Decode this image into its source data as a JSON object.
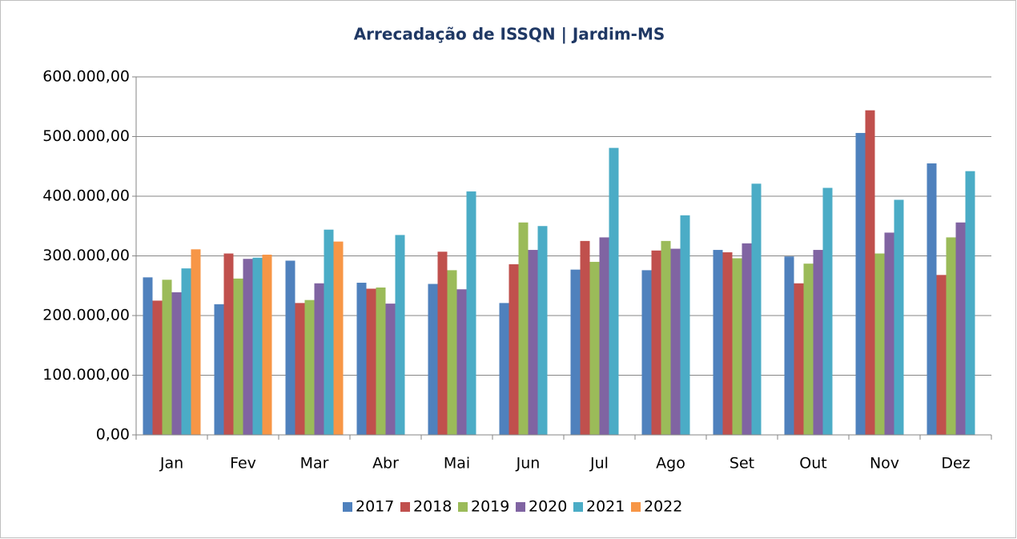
{
  "chart_data": {
    "type": "bar",
    "title": "Arrecadação de ISSQN | Jardim-MS",
    "categories": [
      "Jan",
      "Fev",
      "Mar",
      "Abr",
      "Mai",
      "Jun",
      "Jul",
      "Ago",
      "Set",
      "Out",
      "Nov",
      "Dez"
    ],
    "series": [
      {
        "name": "2017",
        "color": "#4f81bd",
        "values": [
          264000,
          219000,
          292000,
          255000,
          253000,
          221000,
          277000,
          276000,
          310000,
          299000,
          506000,
          455000
        ]
      },
      {
        "name": "2018",
        "color": "#c0504d",
        "values": [
          225000,
          304000,
          221000,
          245000,
          307000,
          286000,
          325000,
          309000,
          306000,
          254000,
          544000,
          268000
        ]
      },
      {
        "name": "2019",
        "color": "#9bbb59",
        "values": [
          260000,
          262000,
          226000,
          247000,
          276000,
          356000,
          290000,
          325000,
          296000,
          287000,
          304000,
          331000
        ]
      },
      {
        "name": "2020",
        "color": "#8064a2",
        "values": [
          239000,
          295000,
          254000,
          220000,
          244000,
          310000,
          331000,
          312000,
          321000,
          310000,
          339000,
          356000
        ]
      },
      {
        "name": "2021",
        "color": "#4bacc6",
        "values": [
          279000,
          297000,
          344000,
          335000,
          408000,
          350000,
          481000,
          368000,
          421000,
          414000,
          394000,
          442000
        ]
      },
      {
        "name": "2022",
        "color": "#f79646",
        "values": [
          311000,
          302000,
          324000,
          null,
          null,
          null,
          null,
          null,
          null,
          null,
          null,
          null
        ]
      }
    ],
    "ylim": [
      0,
      600000
    ],
    "yticks": [
      {
        "value": 0,
        "label": "0,00"
      },
      {
        "value": 100000,
        "label": "100.000,00"
      },
      {
        "value": 200000,
        "label": "200.000,00"
      },
      {
        "value": 300000,
        "label": "300.000,00"
      },
      {
        "value": 400000,
        "label": "400.000,00"
      },
      {
        "value": 500000,
        "label": "500.000,00"
      },
      {
        "value": 600000,
        "label": "600.000,00"
      }
    ],
    "grid": true,
    "legend": "bottom"
  }
}
